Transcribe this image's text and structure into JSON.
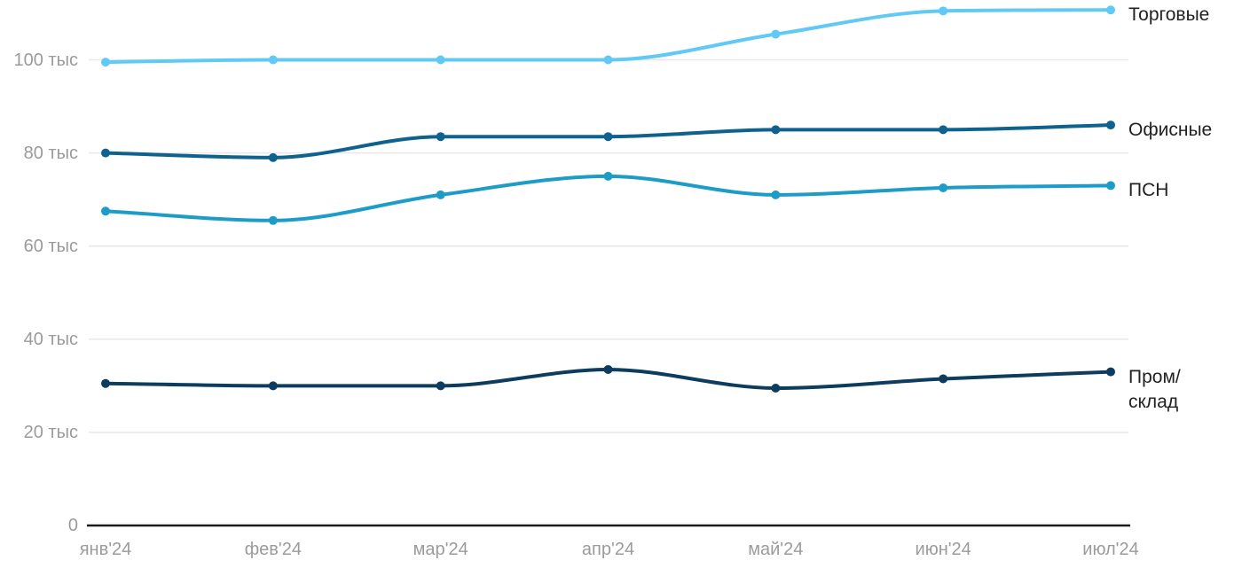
{
  "chart_data": {
    "type": "line",
    "x": [
      "янв'24",
      "фев'24",
      "мар'24",
      "апр'24",
      "май'24",
      "июн'24",
      "июл'24"
    ],
    "series": [
      {
        "name": "torgovye",
        "label": "Торговые",
        "color": "#61c9f5",
        "values": [
          99.5,
          100,
          100,
          100,
          105.5,
          110.5,
          110.7
        ]
      },
      {
        "name": "ofisnye",
        "label": "Офисные",
        "color": "#0f628e",
        "values": [
          80,
          79,
          83.5,
          83.5,
          85,
          85,
          86
        ]
      },
      {
        "name": "psn",
        "label": "ПСН",
        "color": "#1e9cc8",
        "values": [
          67.5,
          65.5,
          71,
          75,
          71,
          72.5,
          73
        ]
      },
      {
        "name": "prom-sklad",
        "label": "Пром/\nсклад",
        "color": "#0d3c5e",
        "values": [
          30.5,
          30,
          30,
          33.5,
          29.5,
          31.5,
          33
        ]
      }
    ],
    "yticks": [
      {
        "value": 0,
        "label": "0"
      },
      {
        "value": 20,
        "label": "20 тыс"
      },
      {
        "value": 40,
        "label": "40 тыс"
      },
      {
        "value": 60,
        "label": "60 тыс"
      },
      {
        "value": 80,
        "label": "80 тыс"
      },
      {
        "value": 100,
        "label": "100 тыс"
      }
    ],
    "ylim": [
      0,
      113.5
    ],
    "grid": "horizontal",
    "legend_position": "right-of-last-point",
    "curve": "monotone"
  },
  "colors": {
    "background": "#ffffff",
    "gridline": "#e8e8e8",
    "axis_line": "#1a1a1a",
    "tick_text": "#9b9b9b",
    "legend_text": "#222222"
  }
}
